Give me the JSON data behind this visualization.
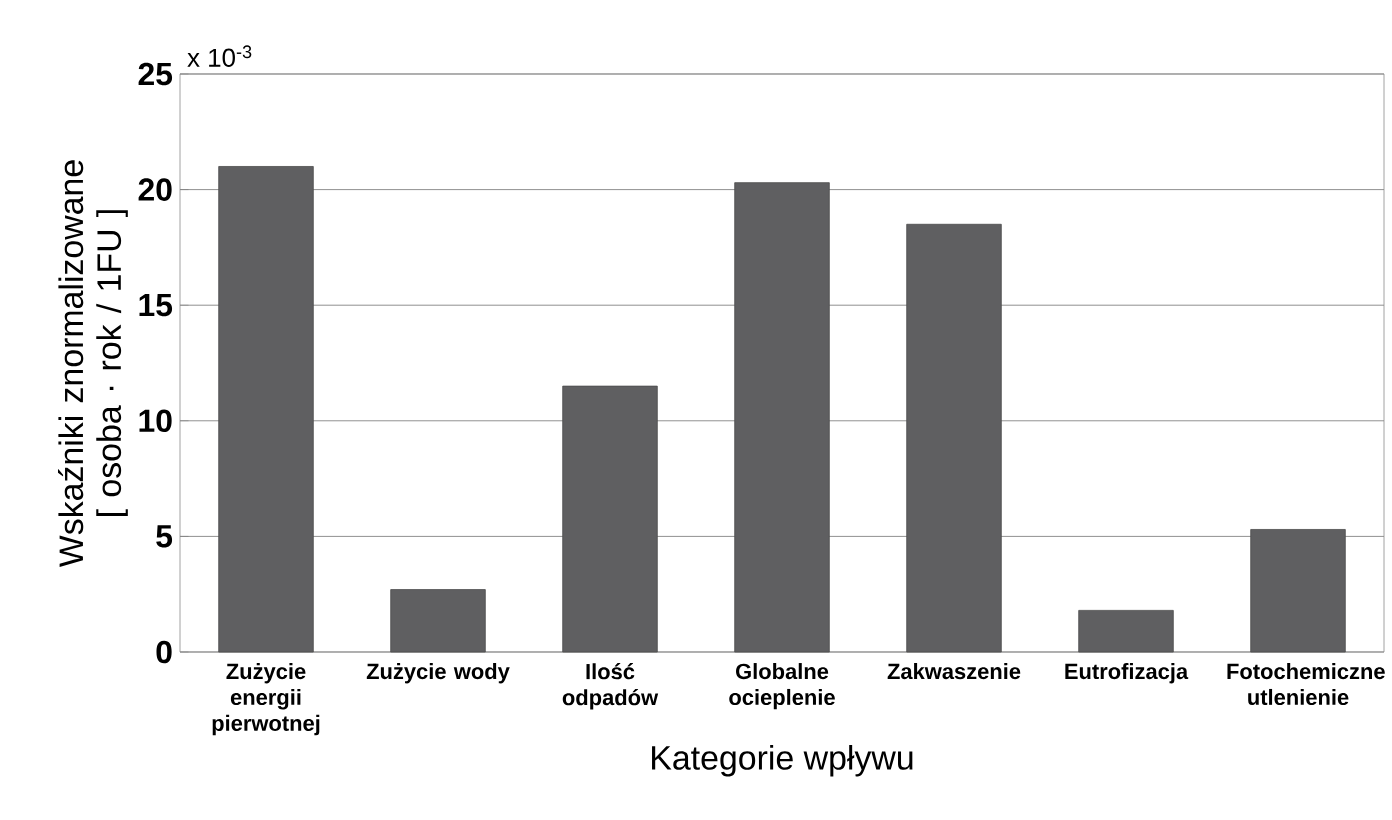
{
  "chart_data": {
    "type": "bar",
    "xlabel": "Kategorie wpływu",
    "ylabel": "Wskaźniki znormalizowane [ osoba · rok / 1FU ]",
    "categories": [
      "Zużycie energii pierwotnej",
      "Zużycie wody",
      "Ilość odpadów",
      "Globalne ocieplenie",
      "Zakwaszenie",
      "Eutrofizacja",
      "Fotochemiczne utlenienie"
    ],
    "values": [
      21.0,
      2.7,
      11.5,
      20.3,
      18.5,
      1.8,
      5.3
    ],
    "color": "#5f5f61",
    "ylim": [
      0,
      25
    ],
    "yticks": [
      0,
      5,
      10,
      15,
      20,
      25
    ],
    "grid": "y",
    "annotations": [
      "x 10$^{-3}$"
    ]
  }
}
